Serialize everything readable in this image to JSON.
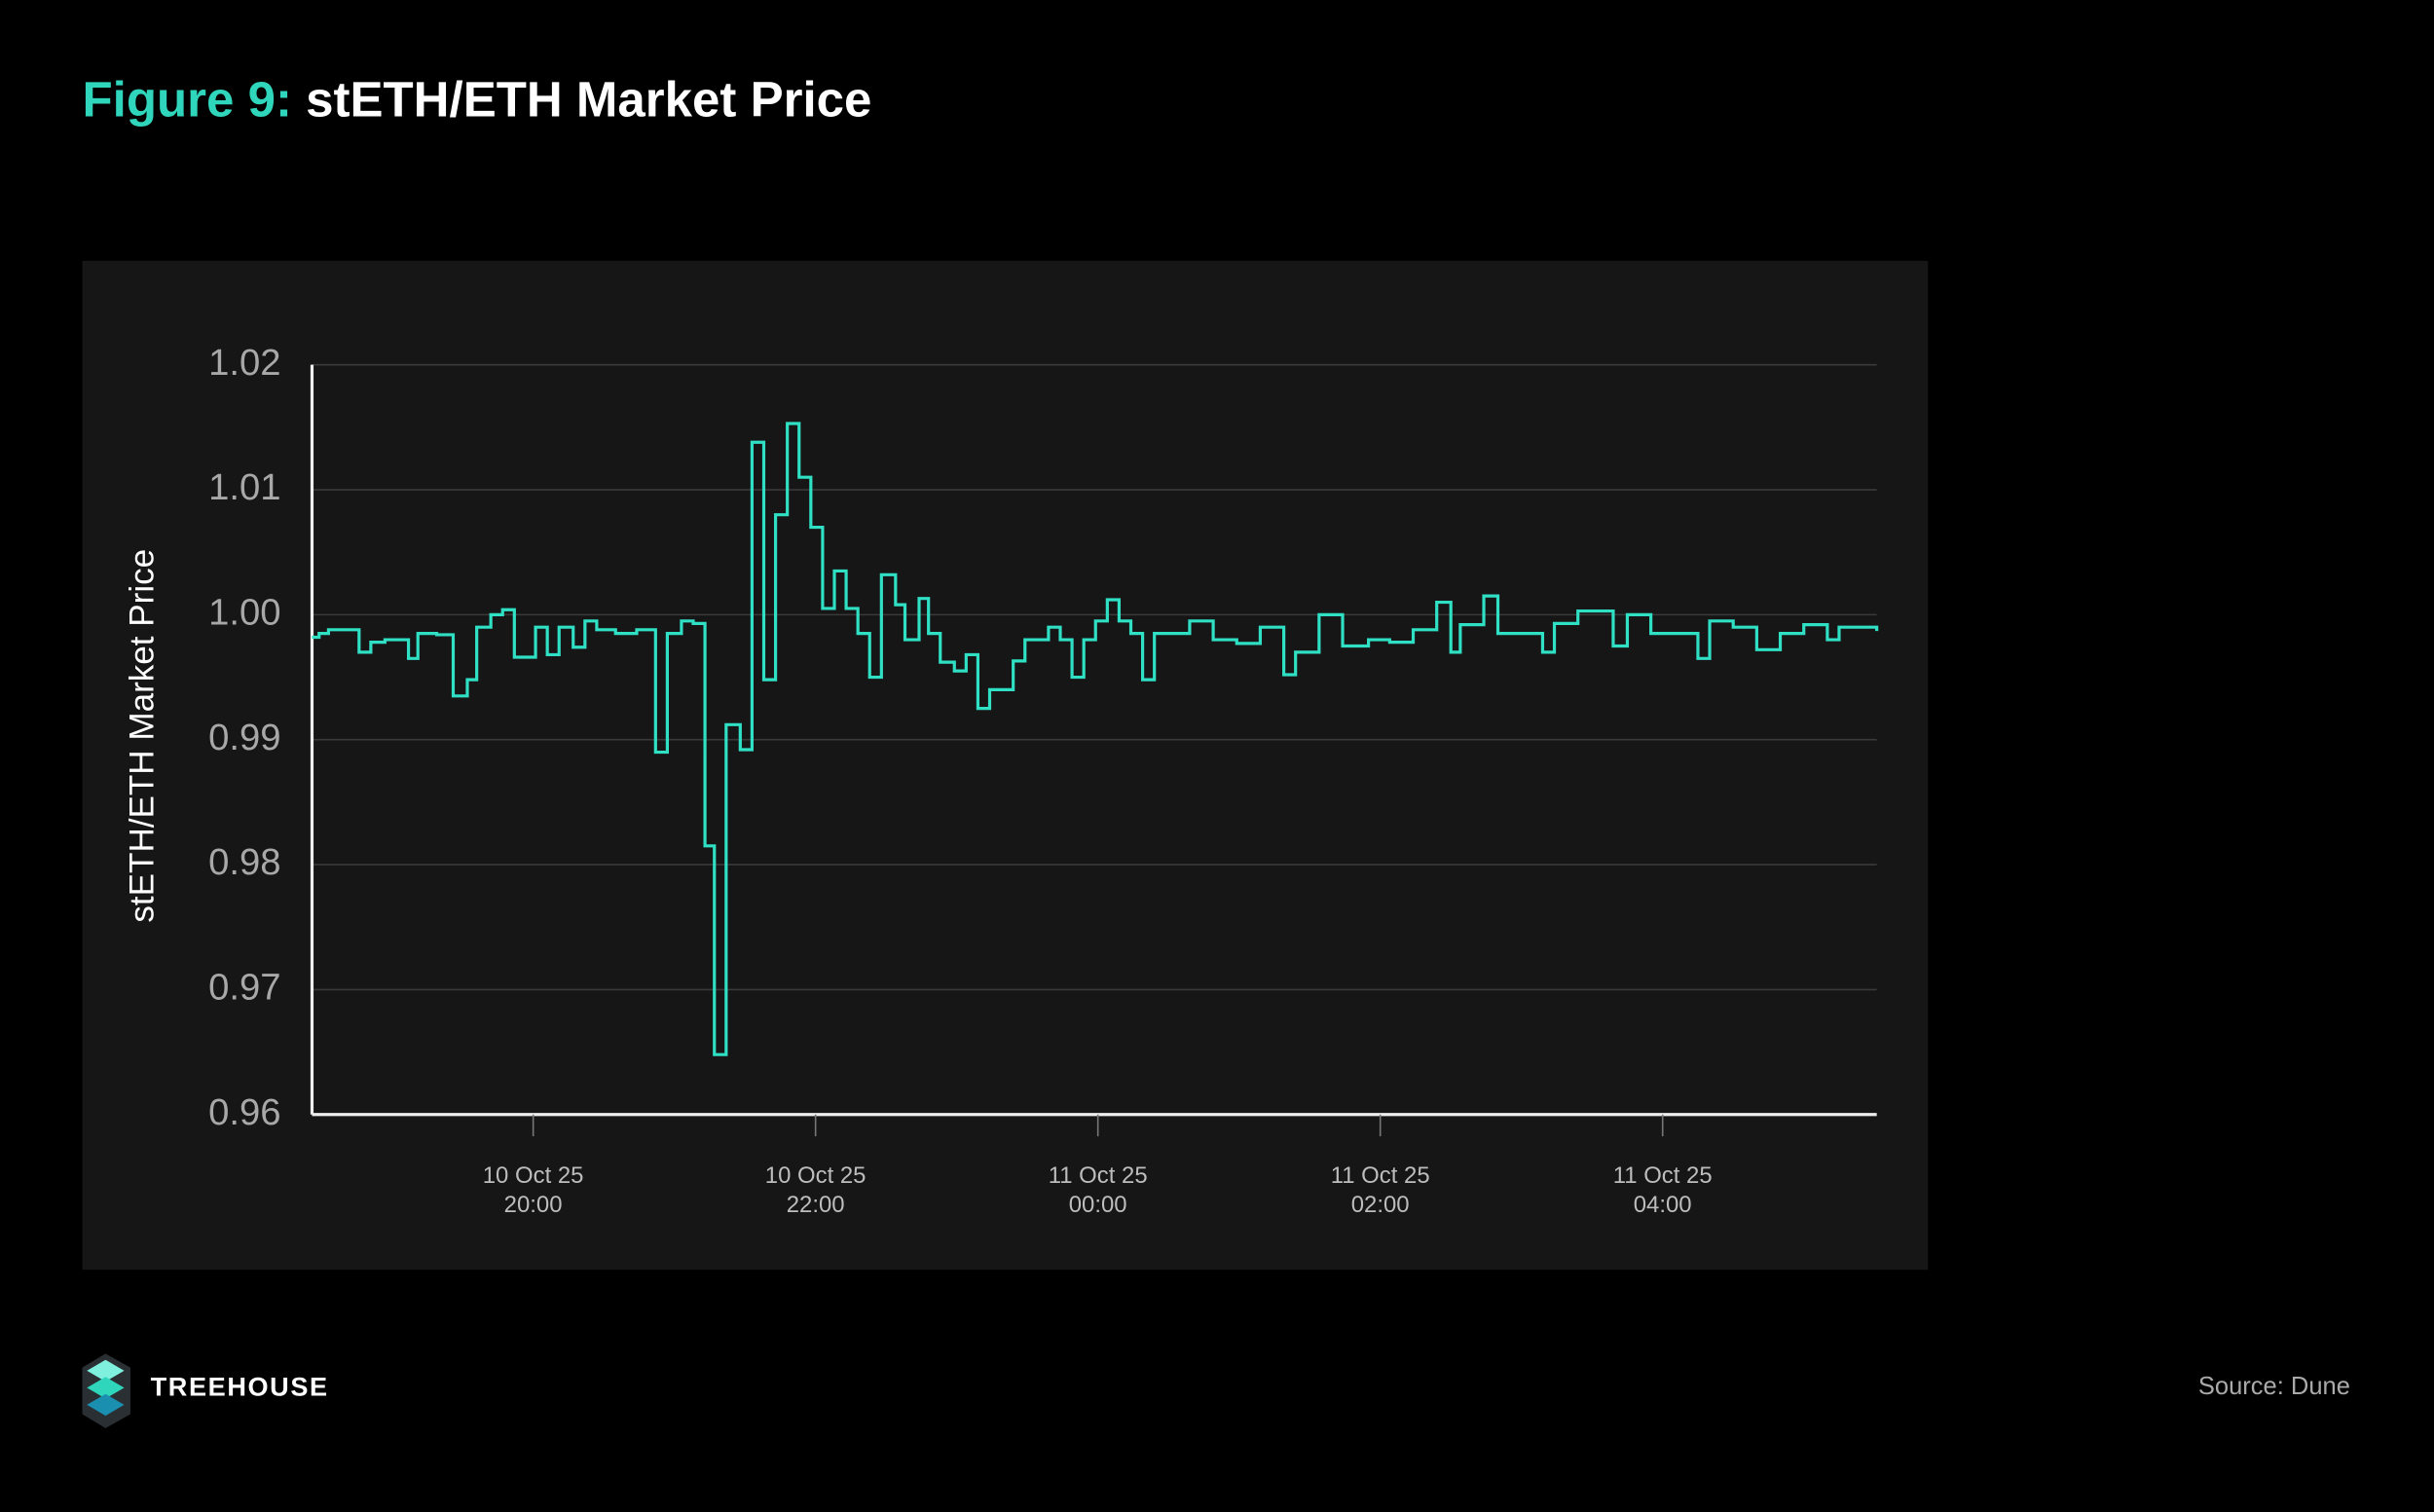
{
  "chart_data": {
    "type": "line",
    "step": true,
    "title_prefix": "Figure 9:",
    "title": "stETH/ETH Market Price",
    "y_label": "stETH/ETH Market Price",
    "color": "#2fe0c4",
    "grid": true,
    "ylim": [
      0.96,
      1.02
    ],
    "yticks": [
      0.96,
      0.97,
      0.98,
      0.99,
      {
        "value": 1,
        "label": "1.00"
      },
      1.01,
      1.02
    ],
    "xlim": [
      "2025-10-10 18:26",
      "2025-10-11 05:31"
    ],
    "xticks": [
      {
        "value": "2025-10-10 20:00",
        "label": "10 Oct 25\n20:00"
      },
      {
        "value": "2025-10-10 22:00",
        "label": "10 Oct 25\n22:00"
      },
      {
        "value": "2025-10-11 00:00",
        "label": "11 Oct 25\n00:00"
      },
      {
        "value": "2025-10-11 02:00",
        "label": "11 Oct 25\n02:00"
      },
      {
        "value": "2025-10-11 04:00",
        "label": "11 Oct 25\n04:00"
      }
    ],
    "x": [
      "2025-10-10 18:26",
      "2025-10-10 18:29",
      "2025-10-10 18:33",
      "2025-10-10 18:46",
      "2025-10-10 18:51",
      "2025-10-10 18:57",
      "2025-10-10 19:07",
      "2025-10-10 19:11",
      "2025-10-10 19:19",
      "2025-10-10 19:26",
      "2025-10-10 19:32",
      "2025-10-10 19:36",
      "2025-10-10 19:42",
      "2025-10-10 19:47",
      "2025-10-10 19:52",
      "2025-10-10 20:01",
      "2025-10-10 20:06",
      "2025-10-10 20:11",
      "2025-10-10 20:17",
      "2025-10-10 20:22",
      "2025-10-10 20:27",
      "2025-10-10 20:35",
      "2025-10-10 20:44",
      "2025-10-10 20:52",
      "2025-10-10 20:57",
      "2025-10-10 21:03",
      "2025-10-10 21:08",
      "2025-10-10 21:13",
      "2025-10-10 21:17",
      "2025-10-10 21:22",
      "2025-10-10 21:28",
      "2025-10-10 21:33",
      "2025-10-10 21:38",
      "2025-10-10 21:43",
      "2025-10-10 21:48",
      "2025-10-10 21:53",
      "2025-10-10 21:58",
      "2025-10-10 22:03",
      "2025-10-10 22:08",
      "2025-10-10 22:13",
      "2025-10-10 22:18",
      "2025-10-10 22:23",
      "2025-10-10 22:28",
      "2025-10-10 22:34",
      "2025-10-10 22:38",
      "2025-10-10 22:44",
      "2025-10-10 22:48",
      "2025-10-10 22:53",
      "2025-10-10 22:59",
      "2025-10-10 23:04",
      "2025-10-10 23:09",
      "2025-10-10 23:14",
      "2025-10-10 23:24",
      "2025-10-10 23:29",
      "2025-10-10 23:39",
      "2025-10-10 23:44",
      "2025-10-10 23:49",
      "2025-10-10 23:54",
      "2025-10-10 23:59",
      "2025-10-11 00:04",
      "2025-10-11 00:09",
      "2025-10-11 00:14",
      "2025-10-11 00:19",
      "2025-10-11 00:24",
      "2025-10-11 00:39",
      "2025-10-11 00:49",
      "2025-10-11 00:59",
      "2025-10-11 01:09",
      "2025-10-11 01:19",
      "2025-10-11 01:24",
      "2025-10-11 01:34",
      "2025-10-11 01:44",
      "2025-10-11 01:55",
      "2025-10-11 02:04",
      "2025-10-11 02:14",
      "2025-10-11 02:24",
      "2025-10-11 02:30",
      "2025-10-11 02:34",
      "2025-10-11 02:44",
      "2025-10-11 02:50",
      "2025-10-11 03:09",
      "2025-10-11 03:14",
      "2025-10-11 03:24",
      "2025-10-11 03:39",
      "2025-10-11 03:45",
      "2025-10-11 03:55",
      "2025-10-11 04:15",
      "2025-10-11 04:20",
      "2025-10-11 04:30",
      "2025-10-11 04:40",
      "2025-10-11 04:50",
      "2025-10-11 05:00",
      "2025-10-11 05:10",
      "2025-10-11 05:15",
      "2025-10-11 05:31"
    ],
    "values": [
      0.9982,
      0.9985,
      0.9988,
      0.997,
      0.9978,
      0.998,
      0.9965,
      0.9985,
      0.9984,
      0.9935,
      0.9948,
      0.999,
      1.0,
      1.0004,
      0.9966,
      0.999,
      0.9968,
      0.999,
      0.9974,
      0.9995,
      0.9988,
      0.9985,
      0.9988,
      0.989,
      0.9985,
      0.9995,
      0.9993,
      0.9815,
      0.9648,
      0.9912,
      0.9892,
      1.0138,
      0.9948,
      1.008,
      1.0153,
      1.011,
      1.007,
      1.0005,
      1.0035,
      1.0005,
      0.9985,
      0.995,
      1.0032,
      1.0008,
      0.998,
      1.0013,
      0.9985,
      0.9962,
      0.9955,
      0.9968,
      0.9925,
      0.994,
      0.9963,
      0.998,
      0.999,
      0.998,
      0.995,
      0.998,
      0.9995,
      1.0012,
      0.9995,
      0.9985,
      0.9948,
      0.9985,
      0.9995,
      0.998,
      0.9977,
      0.999,
      0.9952,
      0.997,
      1.0,
      0.9975,
      0.998,
      0.9978,
      0.9988,
      1.001,
      0.997,
      0.9992,
      1.0015,
      0.9985,
      0.997,
      0.9993,
      1.0003,
      0.9975,
      1.0,
      0.9985,
      0.9965,
      0.9995,
      0.999,
      0.9972,
      0.9985,
      0.9992,
      0.998,
      0.999,
      0.9987
    ]
  },
  "footer": {
    "brand": "TREEHOUSE",
    "source": "Source: Dune"
  }
}
